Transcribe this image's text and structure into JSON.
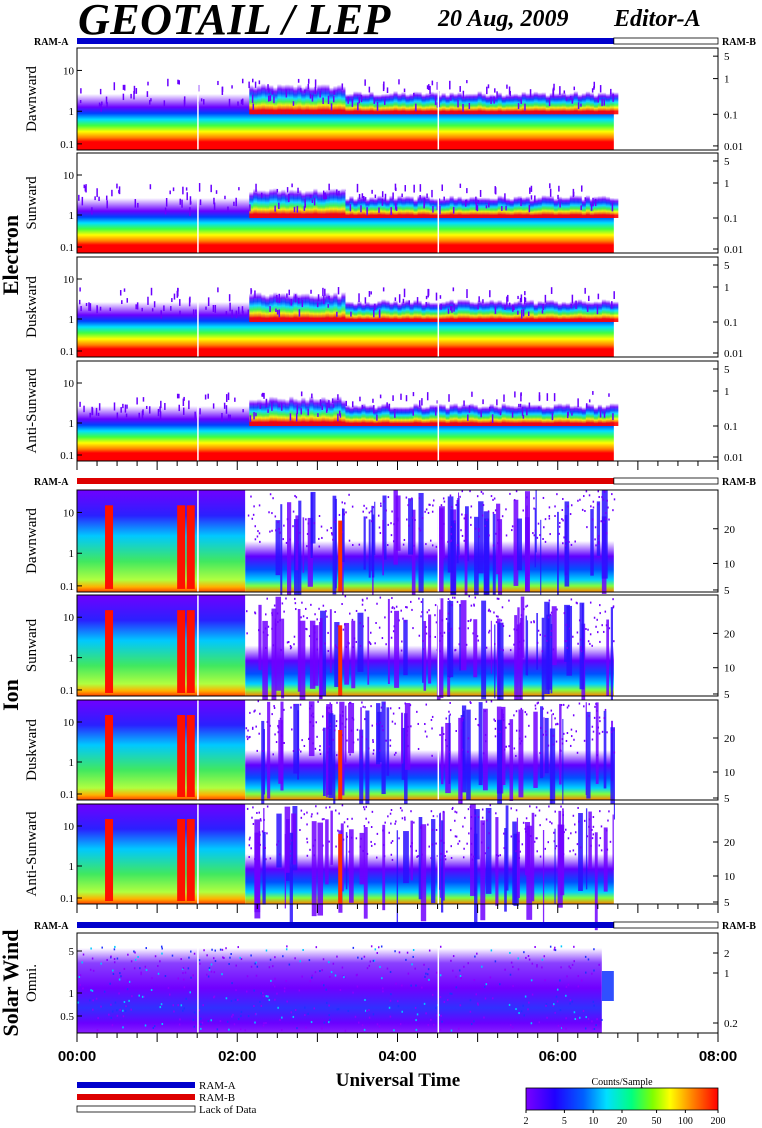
{
  "header": {
    "title": "GEOTAIL / LEP",
    "date": "20 Aug, 2009",
    "editor": "Editor-A"
  },
  "chart_data": {
    "type": "heatmap",
    "xlabel": "Universal Time",
    "x_ticks": [
      "00:00",
      "02:00",
      "04:00",
      "06:00",
      "08:00"
    ],
    "x_range_hours": [
      0,
      8
    ],
    "data_end_hour": 6.7,
    "groups": [
      {
        "name": "Electron",
        "ram_left": "RAM-A",
        "ram_right": "RAM-B",
        "ram_bar_color": "#0000cc",
        "left_ticks": [
          "10",
          "1",
          "0.1"
        ],
        "right_ticks": [
          "5",
          "1",
          "0.1",
          "0.01"
        ],
        "panels": [
          {
            "name": "Dawnward"
          },
          {
            "name": "Sunward"
          },
          {
            "name": "Duskward"
          },
          {
            "name": "Anti-Sunward"
          }
        ]
      },
      {
        "name": "Ion",
        "ram_left": "RAM-A",
        "ram_right": "RAM-B",
        "ram_bar_color": "#dd0000",
        "left_ticks": [
          "10",
          "1",
          "0.1"
        ],
        "right_ticks": [
          "20",
          "10",
          "5"
        ],
        "panels": [
          {
            "name": "Dawnward"
          },
          {
            "name": "Sunward"
          },
          {
            "name": "Duskward"
          },
          {
            "name": "Anti-Sunward"
          }
        ]
      },
      {
        "name": "Solar Wind",
        "ram_left": "RAM-A",
        "ram_right": "RAM-B",
        "ram_bar_color": "#0000cc",
        "left_ticks": [
          "5",
          "1",
          "0.5"
        ],
        "right_ticks": [
          "2",
          "1",
          "0.2"
        ],
        "panels": [
          {
            "name": "Omni."
          }
        ]
      }
    ],
    "legend": [
      {
        "label": "RAM-A",
        "color": "#0000cc"
      },
      {
        "label": "RAM-B",
        "color": "#dd0000"
      },
      {
        "label": "Lack of Data",
        "color": "#ffffff"
      }
    ],
    "colorbar": {
      "title": "Counts/Sample",
      "ticks": [
        "2",
        "5",
        "10",
        "20",
        "50",
        "100",
        "200"
      ],
      "colors": [
        "#ffffff",
        "#7a00ff",
        "#3a00ff",
        "#0000ff",
        "#0070ff",
        "#00e0ff",
        "#00ff80",
        "#40ff00",
        "#c0ff00",
        "#ffff00",
        "#ffb000",
        "#ff5000",
        "#ff0000"
      ]
    }
  }
}
